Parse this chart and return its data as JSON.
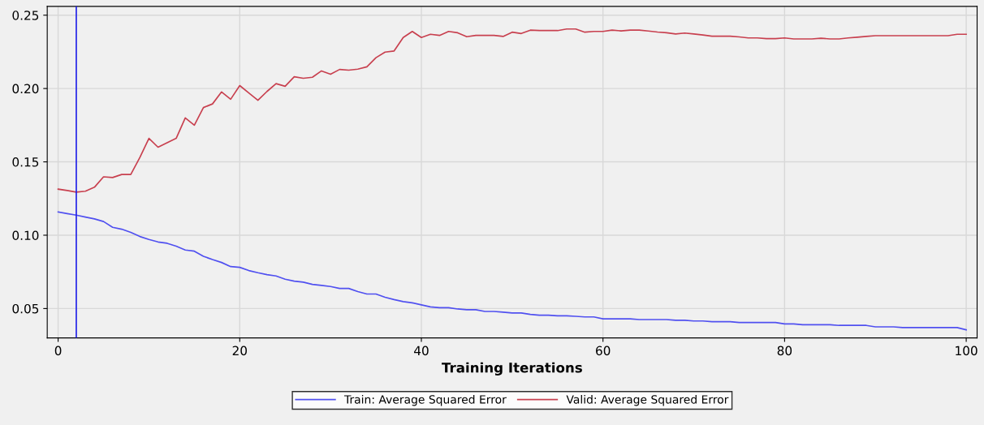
{
  "chart_data": {
    "type": "line",
    "xlabel": "Training Iterations",
    "x": [
      0,
      1,
      2,
      3,
      4,
      5,
      6,
      7,
      8,
      9,
      10,
      11,
      12,
      13,
      14,
      15,
      16,
      17,
      18,
      19,
      20,
      21,
      22,
      23,
      24,
      25,
      26,
      27,
      28,
      29,
      30,
      31,
      32,
      33,
      34,
      35,
      36,
      37,
      38,
      39,
      40,
      41,
      42,
      43,
      44,
      45,
      46,
      47,
      48,
      49,
      50,
      51,
      52,
      53,
      54,
      55,
      56,
      57,
      58,
      59,
      60,
      61,
      62,
      63,
      64,
      65,
      66,
      67,
      68,
      69,
      70,
      71,
      72,
      73,
      74,
      75,
      76,
      77,
      78,
      79,
      80,
      81,
      82,
      83,
      84,
      85,
      86,
      87,
      88,
      89,
      90,
      91,
      92,
      93,
      94,
      95,
      96,
      97,
      98,
      99,
      100
    ],
    "series": [
      {
        "name": "Train: Average Squared Error",
        "color": "#5050f0",
        "values": [
          0.1158,
          0.1147,
          0.1137,
          0.1124,
          0.1111,
          0.1093,
          0.1054,
          0.1041,
          0.1019,
          0.0991,
          0.0971,
          0.0954,
          0.0945,
          0.0925,
          0.0899,
          0.0891,
          0.0856,
          0.0834,
          0.0814,
          0.0786,
          0.0781,
          0.0759,
          0.0744,
          0.0731,
          0.0722,
          0.07,
          0.0687,
          0.068,
          0.0665,
          0.0658,
          0.065,
          0.0637,
          0.0637,
          0.0616,
          0.0599,
          0.0599,
          0.0577,
          0.0561,
          0.0547,
          0.0539,
          0.0525,
          0.0511,
          0.0506,
          0.0506,
          0.0497,
          0.0492,
          0.0492,
          0.048,
          0.048,
          0.0475,
          0.047,
          0.047,
          0.046,
          0.0455,
          0.0455,
          0.045,
          0.045,
          0.0447,
          0.0443,
          0.0443,
          0.043,
          0.043,
          0.043,
          0.043,
          0.0425,
          0.0425,
          0.0425,
          0.0425,
          0.042,
          0.042,
          0.0415,
          0.0415,
          0.041,
          0.041,
          0.041,
          0.0405,
          0.0405,
          0.0405,
          0.0405,
          0.0405,
          0.0395,
          0.0395,
          0.039,
          0.039,
          0.039,
          0.039,
          0.0385,
          0.0385,
          0.0385,
          0.0385,
          0.0375,
          0.0375,
          0.0375,
          0.037,
          0.037,
          0.037,
          0.037,
          0.037,
          0.037,
          0.037,
          0.0355
        ]
      },
      {
        "name": "Valid: Average Squared Error",
        "color": "#c8404f",
        "values": [
          0.1314,
          0.1305,
          0.1294,
          0.13,
          0.1327,
          0.1398,
          0.1393,
          0.1414,
          0.1414,
          0.153,
          0.166,
          0.16,
          0.163,
          0.166,
          0.18,
          0.175,
          0.187,
          0.1895,
          0.1977,
          0.1927,
          0.202,
          0.197,
          0.192,
          0.198,
          0.2033,
          0.2015,
          0.208,
          0.207,
          0.2077,
          0.212,
          0.2097,
          0.213,
          0.2125,
          0.2132,
          0.2148,
          0.221,
          0.2248,
          0.2256,
          0.2348,
          0.2389,
          0.2348,
          0.237,
          0.2362,
          0.2389,
          0.238,
          0.2353,
          0.2362,
          0.2362,
          0.2362,
          0.2355,
          0.2384,
          0.2375,
          0.2398,
          0.2395,
          0.2395,
          0.2395,
          0.2406,
          0.2406,
          0.2384,
          0.2389,
          0.2389,
          0.2398,
          0.2393,
          0.2398,
          0.2398,
          0.2392,
          0.2385,
          0.238,
          0.2372,
          0.2378,
          0.2372,
          0.2365,
          0.2357,
          0.2357,
          0.2357,
          0.2352,
          0.2345,
          0.2345,
          0.234,
          0.234,
          0.2345,
          0.2338,
          0.2338,
          0.2338,
          0.2343,
          0.2338,
          0.2338,
          0.2345,
          0.235,
          0.2355,
          0.236,
          0.236,
          0.236,
          0.236,
          0.236,
          0.236,
          0.236,
          0.236,
          0.236,
          0.237,
          0.237
        ]
      }
    ],
    "xlim": [
      -1.2,
      101.2
    ],
    "ylim": [
      0.03,
      0.256
    ],
    "xticks": [
      0,
      20,
      40,
      60,
      80,
      100
    ],
    "yticks": [
      {
        "value": 0.05,
        "label": "0.05"
      },
      {
        "value": 0.1,
        "label": "0.10"
      },
      {
        "value": 0.15,
        "label": "0.15"
      },
      {
        "value": 0.2,
        "label": "0.20"
      },
      {
        "value": 0.25,
        "label": "0.25"
      }
    ],
    "ref_lines": [
      {
        "axis": "x",
        "value": 2,
        "color": "#2020e8"
      }
    ],
    "grid": true,
    "legend": "bottom",
    "marker": "none",
    "line_style": "solid"
  }
}
